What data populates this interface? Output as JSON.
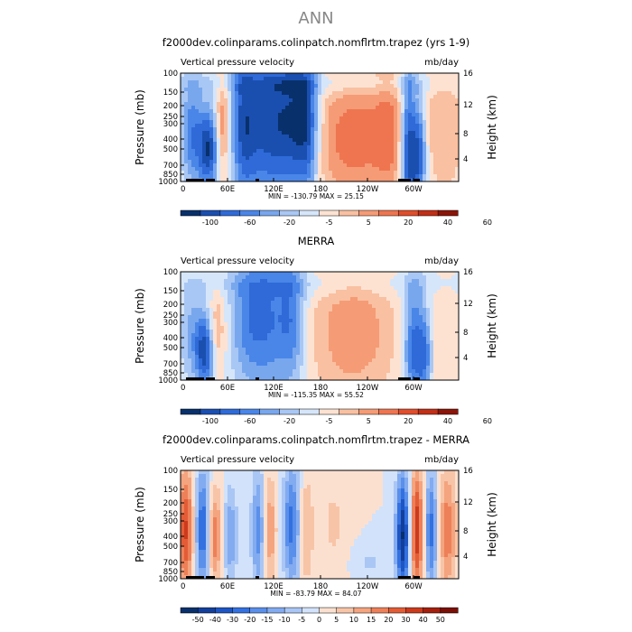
{
  "title": "ANN",
  "chart_data": [
    {
      "type": "heatmap",
      "title": "f2000dev.colinparams.colinpatch.nomflrtm.trapez (yrs 1-9)",
      "left_label": "Vertical pressure velocity",
      "right_label": "mb/day",
      "ylabel": "Pressure (mb)",
      "ylabel_right": "Height (km)",
      "y_ticks": [
        "100",
        "150",
        "200",
        "250",
        "300",
        "400",
        "500",
        "700",
        "850",
        "1000"
      ],
      "y_right_ticks": [
        "16",
        "12",
        "8",
        "4"
      ],
      "x_ticks": [
        "0",
        "60E",
        "120E",
        "180",
        "120W",
        "60W"
      ],
      "stats": "MIN = -130.79   MAX =  25.15",
      "colorbar_labels": [
        "-100",
        "-60",
        "-20",
        "-5",
        "5",
        "20",
        "40",
        "60"
      ]
    },
    {
      "type": "heatmap",
      "title": "MERRA",
      "left_label": "Vertical pressure velocity",
      "right_label": "mb/day",
      "ylabel": "Pressure (mb)",
      "ylabel_right": "Height (km)",
      "y_ticks": [
        "100",
        "150",
        "200",
        "250",
        "300",
        "400",
        "500",
        "700",
        "850",
        "1000"
      ],
      "y_right_ticks": [
        "16",
        "12",
        "8",
        "4"
      ],
      "x_ticks": [
        "0",
        "60E",
        "120E",
        "180",
        "120W",
        "60W"
      ],
      "stats": "MIN = -115.35   MAX =  55.52",
      "colorbar_labels": [
        "-100",
        "-60",
        "-20",
        "-5",
        "5",
        "20",
        "40",
        "60"
      ]
    },
    {
      "type": "heatmap",
      "title": "f2000dev.colinparams.colinpatch.nomflrtm.trapez - MERRA",
      "left_label": "Vertical pressure velocity",
      "right_label": "mb/day",
      "ylabel": "Pressure (mb)",
      "ylabel_right": "Height (km)",
      "y_ticks": [
        "100",
        "150",
        "200",
        "250",
        "300",
        "400",
        "500",
        "700",
        "850",
        "1000"
      ],
      "y_right_ticks": [
        "16",
        "12",
        "8",
        "4"
      ],
      "x_ticks": [
        "0",
        "60E",
        "120E",
        "180",
        "120W",
        "60W"
      ],
      "stats": "MIN = -83.79   MAX =  84.07",
      "colorbar_labels": [
        "-50",
        "-40",
        "-30",
        "-20",
        "-15",
        "-10",
        "-5",
        "0",
        "5",
        "10",
        "15",
        "20",
        "30",
        "40",
        "50"
      ]
    }
  ],
  "colors": {
    "colorbar_ab": [
      "#08306b",
      "#1a4fb0",
      "#2f6ad8",
      "#4a86e8",
      "#78a7ee",
      "#a9c7f4",
      "#d6e6fa",
      "#fde2d2",
      "#f9c0a1",
      "#f59b75",
      "#ee7550",
      "#e04e2c",
      "#c02f17",
      "#8b1508"
    ],
    "colorbar_diff": [
      "#08306b",
      "#123f9b",
      "#1e55c4",
      "#3371e0",
      "#5a8fea",
      "#82abf0",
      "#a9c6f5",
      "#d2e2fa",
      "#fbe0d0",
      "#f8c4a7",
      "#f4a47f",
      "#ed8058",
      "#e35c36",
      "#cc3a1c",
      "#a51f0d",
      "#7a1005"
    ],
    "plot_background": "#fbe1d2"
  }
}
